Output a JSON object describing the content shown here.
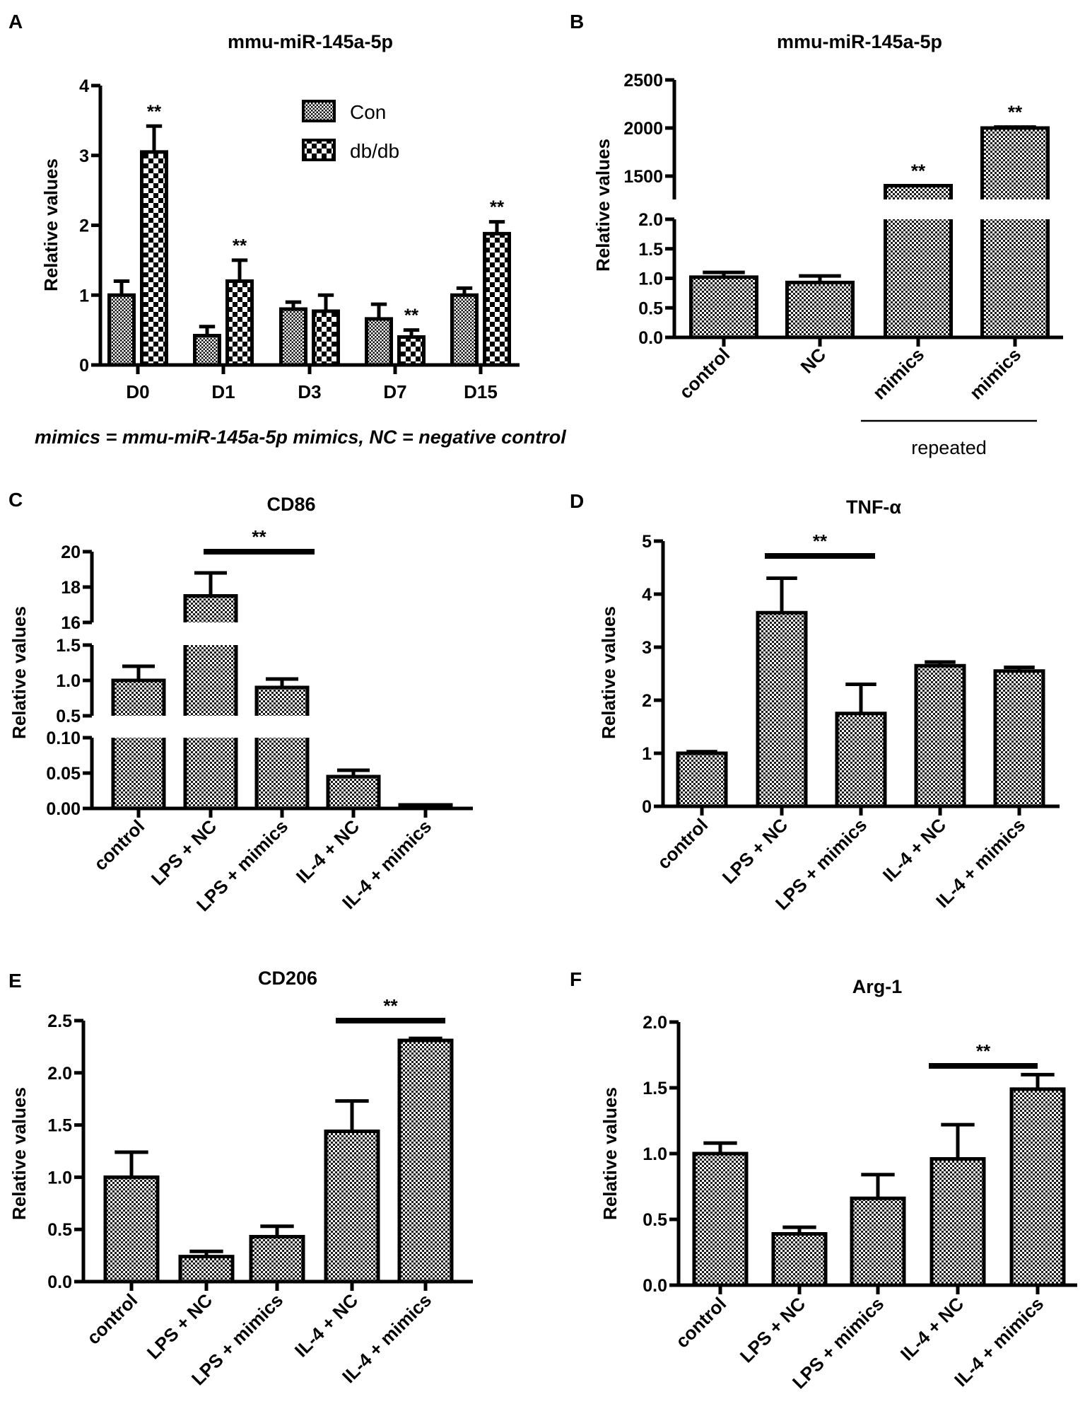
{
  "caption": "mimics = mmu-miR-145a-5p mimics, NC = negative control",
  "chart_data": [
    {
      "panel": "A",
      "type": "bar",
      "title": "mmu-miR-145a-5p",
      "xlabel": "",
      "ylabel": "Relative values",
      "categories": [
        "D0",
        "D1",
        "D3",
        "D7",
        "D15"
      ],
      "series": [
        {
          "name": "Con",
          "values": [
            1.0,
            0.42,
            0.8,
            0.66,
            1.0
          ],
          "errors": [
            0.2,
            0.13,
            0.1,
            0.21,
            0.1
          ]
        },
        {
          "name": "db/db",
          "values": [
            3.05,
            1.2,
            0.77,
            0.4,
            1.88
          ],
          "errors": [
            0.37,
            0.3,
            0.23,
            0.1,
            0.17
          ]
        }
      ],
      "ylim": [
        0,
        4
      ],
      "yticks": [
        0,
        1,
        2,
        3,
        4
      ],
      "ytick_labels": [
        "0",
        "1",
        "2",
        "3",
        "4"
      ],
      "legend": "top-right",
      "significance": [
        {
          "series": 1,
          "category": 0,
          "label": "**"
        },
        {
          "series": 1,
          "category": 1,
          "label": "**"
        },
        {
          "series": 1,
          "category": 3,
          "label": "**"
        },
        {
          "series": 1,
          "category": 4,
          "label": "**"
        }
      ]
    },
    {
      "panel": "B",
      "type": "bar",
      "title": "mmu-miR-145a-5p",
      "xlabel": "",
      "ylabel": "Relative values",
      "categories": [
        "control",
        "NC",
        "mimics",
        "mimics"
      ],
      "category_group": {
        "label": "repeated",
        "from": 2,
        "to": 3
      },
      "series": [
        {
          "name": "",
          "values": [
            1.02,
            0.93,
            1400,
            2000
          ],
          "errors": [
            0.08,
            0.11,
            0,
            10
          ]
        }
      ],
      "axis_segments": [
        [
          0,
          2.0
        ],
        [
          1257,
          2500
        ]
      ],
      "yticks": [
        0,
        0.5,
        1.0,
        1.5,
        2.0,
        1500,
        2000,
        2500
      ],
      "ytick_labels": [
        "0.0",
        "0.5",
        "1.0",
        "1.5",
        "2.0",
        "1500",
        "2000",
        "2500"
      ],
      "significance": [
        {
          "series": 0,
          "category": 2,
          "label": "**"
        },
        {
          "series": 0,
          "category": 3,
          "label": "**"
        }
      ]
    },
    {
      "panel": "C",
      "type": "bar",
      "title": "CD86",
      "xlabel": "",
      "ylabel": "Relative values",
      "categories": [
        "control",
        "LPS + NC",
        "LPS + mimics",
        "IL-4 + NC",
        "IL-4 + mimics"
      ],
      "series": [
        {
          "name": "",
          "values": [
            1.0,
            17.5,
            0.9,
            0.045,
            0.005
          ],
          "errors": [
            0.2,
            1.3,
            0.12,
            0.009,
            0.001
          ]
        }
      ],
      "axis_segments": [
        [
          0,
          0.1
        ],
        [
          0.5,
          1.5
        ],
        [
          16,
          20
        ]
      ],
      "yticks": [
        0,
        0.05,
        0.1,
        0.5,
        1.0,
        1.5,
        16,
        18,
        20
      ],
      "ytick_labels": [
        "0.00",
        "0.05",
        "0.10",
        "0.5",
        "1.0",
        "1.5",
        "16",
        "18",
        "20"
      ],
      "comparisons": [
        {
          "from": 1,
          "to": 2,
          "label": "**"
        }
      ]
    },
    {
      "panel": "D",
      "type": "bar",
      "title": "TNF-α",
      "xlabel": "",
      "ylabel": "Relative values",
      "categories": [
        "control",
        "LPS + NC",
        "LPS + mimics",
        "IL-4 + NC",
        "IL-4 + mimics"
      ],
      "series": [
        {
          "name": "",
          "values": [
            1.0,
            3.65,
            1.75,
            2.65,
            2.55
          ],
          "errors": [
            0.03,
            0.65,
            0.55,
            0.07,
            0.07
          ]
        }
      ],
      "ylim": [
        0,
        5
      ],
      "yticks": [
        0,
        1,
        2,
        3,
        4,
        5
      ],
      "ytick_labels": [
        "0",
        "1",
        "2",
        "3",
        "4",
        "5"
      ],
      "comparisons": [
        {
          "from": 1,
          "to": 2,
          "label": "**"
        }
      ]
    },
    {
      "panel": "E",
      "type": "bar",
      "title": "CD206",
      "xlabel": "",
      "ylabel": "Relative values",
      "categories": [
        "control",
        "LPS + NC",
        "LPS + mimics",
        "IL-4 + NC",
        "IL-4 + mimics"
      ],
      "series": [
        {
          "name": "",
          "values": [
            1.0,
            0.24,
            0.43,
            1.44,
            2.31
          ],
          "errors": [
            0.24,
            0.05,
            0.1,
            0.29,
            0.02
          ]
        }
      ],
      "ylim": [
        0,
        2.5
      ],
      "yticks": [
        0,
        0.5,
        1.0,
        1.5,
        2.0,
        2.5
      ],
      "ytick_labels": [
        "0.0",
        "0.5",
        "1.0",
        "1.5",
        "2.0",
        "2.5"
      ],
      "comparisons": [
        {
          "from": 3,
          "to": 4,
          "label": "**"
        }
      ]
    },
    {
      "panel": "F",
      "type": "bar",
      "title": "Arg-1",
      "xlabel": "",
      "ylabel": "Relative values",
      "categories": [
        "control",
        "LPS + NC",
        "LPS + mimics",
        "IL-4 + NC",
        "IL-4 + mimics"
      ],
      "series": [
        {
          "name": "",
          "values": [
            1.0,
            0.39,
            0.66,
            0.96,
            1.49
          ],
          "errors": [
            0.08,
            0.05,
            0.18,
            0.26,
            0.11
          ]
        }
      ],
      "ylim": [
        0,
        2.0
      ],
      "yticks": [
        0,
        0.5,
        1.0,
        1.5,
        2.0
      ],
      "ytick_labels": [
        "0.0",
        "0.5",
        "1.0",
        "1.5",
        "2.0"
      ],
      "comparisons": [
        {
          "from": 3,
          "to": 4,
          "label": "**"
        }
      ]
    }
  ]
}
